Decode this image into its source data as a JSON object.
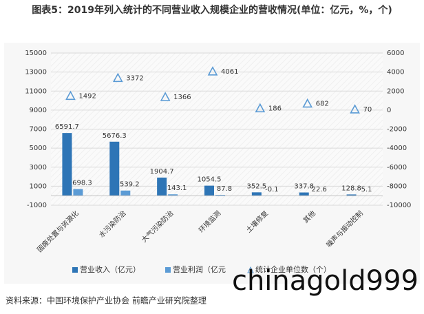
{
  "chart_data": {
    "type": "bar",
    "title": "图表5：2019年列入统计的不同营业收入规模企业的营收情况(单位：亿元，%，个)",
    "categories": [
      "固废处置与资源化",
      "水污染防治",
      "大气污染防治",
      "环境监测",
      "土壤修复",
      "其他",
      "噪声与振动控制"
    ],
    "series": [
      {
        "name": "营业收入（亿元）",
        "color": "#2e75b6",
        "values": [
          6591.7,
          5676.3,
          1904.7,
          1054.5,
          352.5,
          337.8,
          128.8
        ]
      },
      {
        "name": "营业利润（亿元",
        "color": "#5b9bd5",
        "values": [
          698.3,
          539.2,
          143.1,
          87.8,
          -0.1,
          22.6,
          5.1
        ]
      },
      {
        "name": "统计企业单位数（个）",
        "color": "#5b9bd5",
        "axis": "y2",
        "marker": "triangle",
        "values": [
          1492,
          3372,
          1366,
          4061,
          186,
          682,
          70
        ]
      }
    ],
    "ylim": [
      -1000,
      15000
    ],
    "yticks": [
      -1000,
      1000,
      3000,
      5000,
      7000,
      9000,
      11000,
      13000,
      15000
    ],
    "y2lim": [
      -10000,
      6000
    ],
    "y2ticks": [
      -10000,
      -8000,
      -6000,
      -4000,
      -2000,
      0,
      2000,
      4000,
      6000
    ],
    "grid": true,
    "legend": "bottom",
    "source": "资料来源：中国环境保护产业协会 前瞻产业研究院整理",
    "watermark": "chinagold999"
  }
}
